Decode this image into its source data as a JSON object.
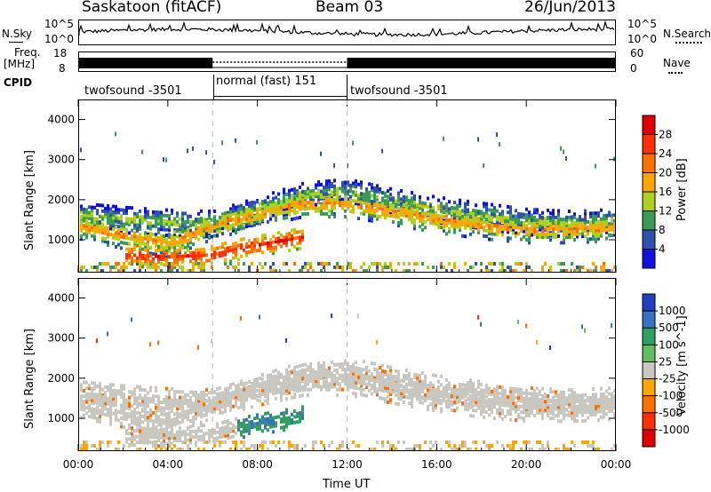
{
  "header": {
    "station": "Saskatoon (fitACF)",
    "beam": "Beam 03",
    "date": "26/Jun/2013"
  },
  "top_panels": {
    "nsky_label": "N.Sky",
    "nsky_ticks": [
      "10^5",
      "10^0"
    ],
    "nsearch_label": "N.Search",
    "nsearch_ticks": [
      "10^5",
      "10^0"
    ],
    "freq_label_1": "Freq.",
    "freq_label_2": "[MHz]",
    "freq_ticks": [
      "18",
      "8"
    ],
    "nave_label": "Nave",
    "nave_ticks": [
      "60",
      "0"
    ],
    "cpid_label": "CPID",
    "cpid_segments": [
      {
        "label": "twofsound -3501",
        "start_hour": 0,
        "end_hour": 6
      },
      {
        "label": "normal (fast) 151",
        "start_hour": 6,
        "end_hour": 12
      },
      {
        "label": "twofsound -3501",
        "start_hour": 12,
        "end_hour": 24
      }
    ]
  },
  "chart_data": [
    {
      "type": "heatmap",
      "name": "power",
      "ylabel": "Slant Range [km]",
      "xlabel": "Time UT",
      "xlim": [
        0,
        24
      ],
      "ylim": [
        180,
        4500
      ],
      "x_ticks": [
        "00:00",
        "04:00",
        "08:00",
        "12:00",
        "16:00",
        "20:00",
        "00:00"
      ],
      "y_ticks": [
        1000,
        2000,
        3000,
        4000
      ],
      "colorbar": {
        "label": "Power [dB]",
        "ticks": [
          "28",
          "24",
          "20",
          "16",
          "12",
          "8",
          "4"
        ],
        "colors": [
          "#e00000",
          "#ff3000",
          "#ff7000",
          "#ffa500",
          "#b0d020",
          "#3a9a5a",
          "#3050b0",
          "#1010e0"
        ]
      },
      "echo_bands": [
        {
          "time": [
            0,
            2,
            4,
            6,
            8,
            10,
            12,
            14,
            16,
            18,
            20,
            22,
            24
          ],
          "range": [
            1650,
            1550,
            1480,
            1450,
            1800,
            2150,
            2250,
            2000,
            1800,
            1650,
            1500,
            1450,
            1500
          ],
          "value": 14
        },
        {
          "time": [
            0,
            2,
            4,
            6,
            8,
            10,
            12,
            14,
            16,
            18,
            20,
            22,
            24
          ],
          "range": [
            1400,
            1150,
            950,
            1400,
            1700,
            1950,
            1950,
            1750,
            1550,
            1400,
            1300,
            1300,
            1350
          ],
          "value": 20
        },
        {
          "time": [
            2,
            4,
            6,
            7,
            8,
            9,
            10
          ],
          "range": [
            650,
            600,
            650,
            800,
            900,
            1000,
            1100
          ],
          "value": 27
        }
      ]
    },
    {
      "type": "heatmap",
      "name": "velocity",
      "ylabel": "Slant Range [km]",
      "xlabel": "Time UT",
      "xlim": [
        0,
        24
      ],
      "ylim": [
        180,
        4500
      ],
      "x_ticks": [
        "00:00",
        "04:00",
        "08:00",
        "12:00",
        "16:00",
        "20:00",
        "00:00"
      ],
      "y_ticks": [
        1000,
        2000,
        3000,
        4000
      ],
      "colorbar": {
        "label": "Velocity [m s^-1]",
        "ticks": [
          "1000",
          "500",
          "100",
          "25",
          "-25",
          "-100",
          "-500",
          "-1000"
        ],
        "colors": [
          "#2040c0",
          "#3a70c0",
          "#30a060",
          "#60c060",
          "#c8c8c0",
          "#ffa500",
          "#ff7000",
          "#ff3000",
          "#e00000"
        ]
      }
    }
  ]
}
